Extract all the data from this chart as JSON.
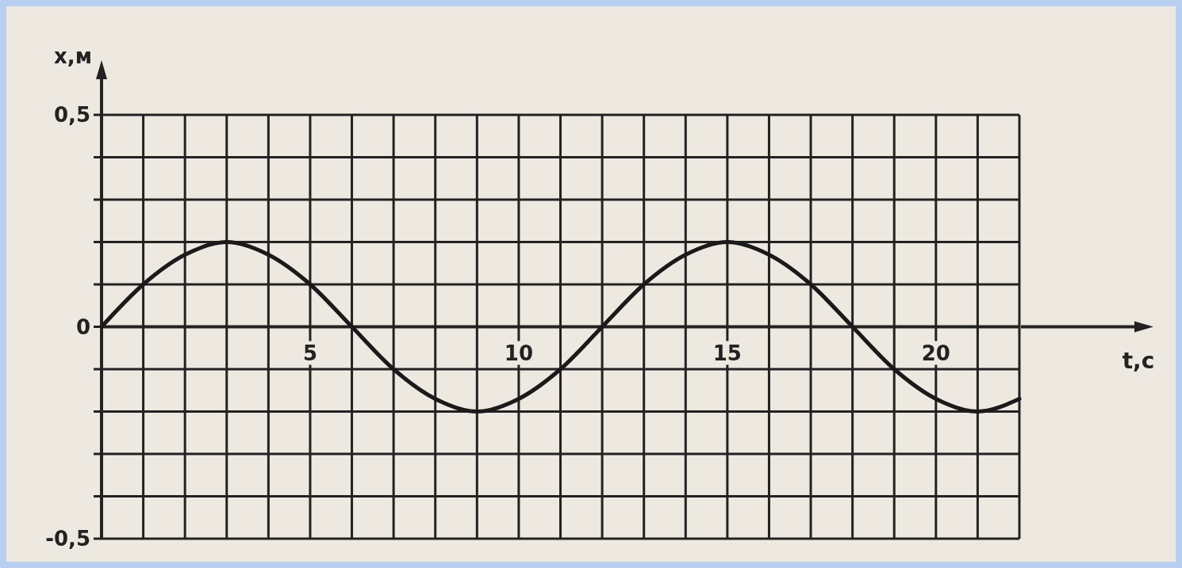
{
  "chart_data": {
    "type": "line",
    "xlabel": "t,c",
    "ylabel": "x,м",
    "x": [
      0,
      1,
      2,
      3,
      4,
      5,
      6,
      7,
      8,
      9,
      10,
      11,
      12,
      13,
      14,
      15,
      16,
      17,
      18,
      19,
      20,
      21,
      22
    ],
    "series": [
      {
        "color": "#1a1a1a",
        "values": [
          0,
          0.1,
          0.17,
          0.2,
          0.17,
          0.1,
          0,
          -0.1,
          -0.17,
          -0.2,
          -0.17,
          -0.1,
          0,
          0.1,
          0.17,
          0.2,
          0.17,
          0.1,
          0,
          -0.1,
          -0.17,
          -0.2,
          -0.17
        ]
      }
    ],
    "xlim": [
      0,
      22
    ],
    "xticks": [
      {
        "value": 1,
        "label": null
      },
      {
        "value": 2,
        "label": null
      },
      {
        "value": 3,
        "label": null
      },
      {
        "value": 4,
        "label": null
      },
      5,
      {
        "value": 6,
        "label": null
      },
      {
        "value": 7,
        "label": null
      },
      {
        "value": 8,
        "label": null
      },
      {
        "value": 9,
        "label": null
      },
      10,
      {
        "value": 11,
        "label": null
      },
      {
        "value": 12,
        "label": null
      },
      {
        "value": 13,
        "label": null
      },
      {
        "value": 14,
        "label": null
      },
      15,
      {
        "value": 16,
        "label": null
      },
      {
        "value": 17,
        "label": null
      },
      {
        "value": 18,
        "label": null
      },
      {
        "value": 19,
        "label": null
      },
      20,
      {
        "value": 21,
        "label": null
      },
      {
        "value": 22,
        "label": null
      }
    ],
    "ylim": [
      -0.5,
      0.5
    ],
    "yticks": [
      {
        "value": -0.5,
        "label": "-0,5"
      },
      {
        "value": -0.4,
        "label": null
      },
      {
        "value": -0.3,
        "label": null
      },
      {
        "value": -0.2,
        "label": null
      },
      {
        "value": -0.1,
        "label": null
      },
      {
        "value": 0,
        "label": "0"
      },
      {
        "value": 0.1,
        "label": null
      },
      {
        "value": 0.2,
        "label": null
      },
      {
        "value": 0.3,
        "label": null
      },
      {
        "value": 0.4,
        "label": null
      },
      {
        "value": 0.5,
        "label": "0,5"
      }
    ],
    "grid": true,
    "line_style": "solid",
    "marker": "none"
  }
}
